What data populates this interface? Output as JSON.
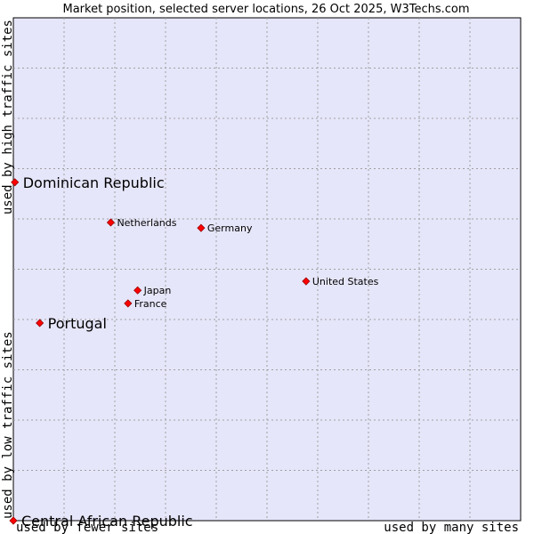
{
  "chart_data": {
    "type": "scatter",
    "title": "Market position, selected server locations, 26 Oct 2025, W3Techs.com",
    "xlabel_low": "used by fewer sites",
    "xlabel_high": "used by many sites",
    "ylabel_low": "used by low traffic sites",
    "ylabel_high": "used by high traffic sites",
    "xlim": [
      0,
      100
    ],
    "ylim": [
      0,
      100
    ],
    "grid": true,
    "colors": {
      "plot_bg": "#e6e6fa",
      "point": "#ff0000",
      "point_border": "#990000",
      "grid": "#a0a0a0"
    },
    "points": [
      {
        "name": "Dominican Republic",
        "x": 0.3,
        "y": 67.3,
        "emphasis": true
      },
      {
        "name": "Netherlands",
        "x": 19.2,
        "y": 59.3,
        "emphasis": false
      },
      {
        "name": "Germany",
        "x": 37.0,
        "y": 58.2,
        "emphasis": false
      },
      {
        "name": "United States",
        "x": 57.7,
        "y": 47.6,
        "emphasis": false
      },
      {
        "name": "Japan",
        "x": 24.5,
        "y": 45.8,
        "emphasis": false
      },
      {
        "name": "France",
        "x": 22.6,
        "y": 43.2,
        "emphasis": false
      },
      {
        "name": "Portugal",
        "x": 5.2,
        "y": 39.3,
        "emphasis": true
      },
      {
        "name": "Central African Republic",
        "x": 0.0,
        "y": 0.0,
        "emphasis": true
      }
    ]
  }
}
